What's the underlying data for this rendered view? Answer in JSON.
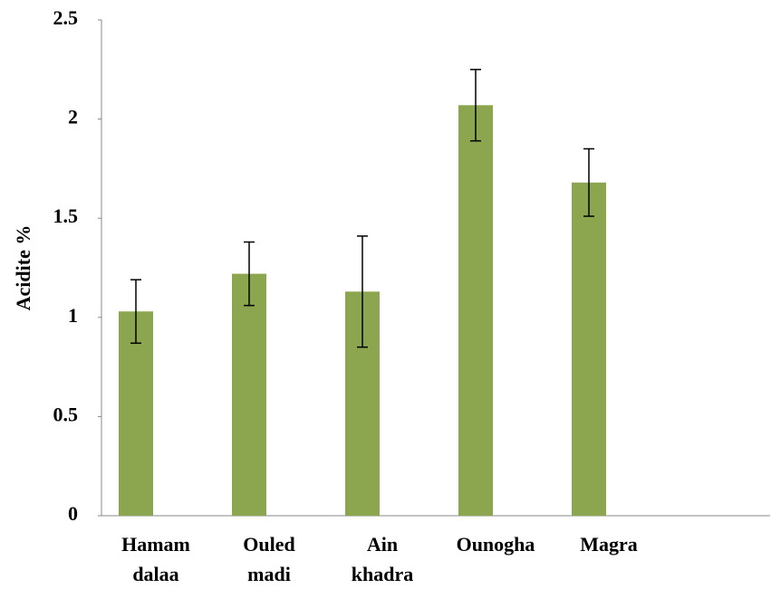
{
  "chart_data": {
    "type": "bar",
    "y_label": "Acidite %",
    "categories": [
      [
        "Hamam",
        "dalaa"
      ],
      [
        "Ouled",
        "madi"
      ],
      [
        "Ain",
        "khadra"
      ],
      [
        "Ounogha"
      ],
      [
        "Magra"
      ],
      null
    ],
    "values": [
      1.03,
      1.22,
      1.13,
      2.07,
      1.68,
      null
    ],
    "errors": [
      0.16,
      0.16,
      0.28,
      0.18,
      0.17,
      null
    ],
    "color": "#8ba64f",
    "ylim": [
      0,
      2.5
    ],
    "yticks": [
      0,
      0.5,
      1,
      1.5,
      2,
      2.5
    ],
    "grid": false
  }
}
